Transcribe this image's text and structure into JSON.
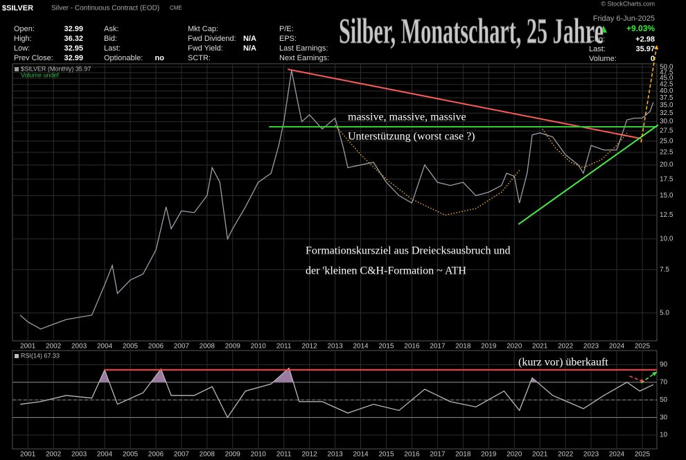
{
  "header": {
    "symbol": "$SILVER",
    "description": "Silver - Continuous Contract (EOD)",
    "exchange": "CME",
    "credit": "© StockCharts.com",
    "title": "Silber, Monatschart, 25 Jahre",
    "date": "Friday  6-Jun-2025",
    "change_pct": "+9.03%",
    "columns": [
      [
        {
          "label": "Open:",
          "value": "32.99"
        },
        {
          "label": "High:",
          "value": "36.32"
        },
        {
          "label": "Low:",
          "value": "32.95"
        },
        {
          "label": "Prev Close:",
          "value": "32.99"
        }
      ],
      [
        {
          "label": "Ask:"
        },
        {
          "label": "Bid:"
        },
        {
          "label": "Last:"
        },
        {
          "label": "Optionable:",
          "value": "no"
        }
      ],
      [
        {
          "label": "Mkt Cap:"
        },
        {
          "label": "Fwd Dividend:",
          "value": "N/A"
        },
        {
          "label": "Fwd Yield:",
          "value": "N/A"
        },
        {
          "label": "SCTR:"
        }
      ],
      [
        {
          "label": "P/E:"
        },
        {
          "label": "EPS:"
        },
        {
          "label": "Last Earnings:"
        },
        {
          "label": "Next Earnings:"
        }
      ]
    ],
    "right": [
      {
        "label": "Chg:",
        "value": "+2.98"
      },
      {
        "label": "Last:",
        "value": "35.97"
      },
      {
        "label": "Volume:",
        "value": "0"
      }
    ]
  },
  "chart_data": [
    {
      "type": "line",
      "log_scale": true,
      "grid": true,
      "legend": [
        "$SILVER (Monthly) 35.97",
        "Volume undef"
      ],
      "color": "#9aa0a8",
      "x": [
        2000.7,
        2001.0,
        2001.5,
        2002.0,
        2002.5,
        2003.0,
        2003.5,
        2004.0,
        2004.3,
        2004.5,
        2005.0,
        2005.5,
        2006.0,
        2006.4,
        2006.6,
        2007.0,
        2007.5,
        2008.0,
        2008.2,
        2008.5,
        2008.8,
        2009.0,
        2009.5,
        2010.0,
        2010.5,
        2010.8,
        2011.0,
        2011.3,
        2011.5,
        2011.7,
        2012.0,
        2012.5,
        2013.0,
        2013.3,
        2013.5,
        2014.0,
        2014.5,
        2015.0,
        2015.5,
        2016.0,
        2016.5,
        2017.0,
        2017.5,
        2018.0,
        2018.5,
        2019.0,
        2019.5,
        2019.7,
        2020.0,
        2020.2,
        2020.5,
        2020.7,
        2021.0,
        2021.5,
        2022.0,
        2022.5,
        2022.7,
        2023.0,
        2023.5,
        2023.8,
        2024.0,
        2024.4,
        2024.7,
        2025.0,
        2025.3,
        2025.43
      ],
      "values": [
        4.9,
        4.6,
        4.3,
        4.5,
        4.7,
        4.8,
        4.9,
        6.5,
        7.8,
        6.0,
        6.8,
        7.2,
        9.0,
        13.5,
        11.0,
        13.0,
        12.8,
        15.0,
        19.5,
        17.0,
        10.0,
        11.0,
        13.5,
        17.0,
        18.5,
        24,
        30,
        48.5,
        38,
        30,
        32,
        28,
        31,
        24,
        19.5,
        20,
        20.5,
        17,
        15,
        14,
        20,
        17,
        16.5,
        17,
        15,
        15.5,
        16.5,
        18.5,
        18,
        14,
        18.5,
        26.5,
        27,
        26,
        22,
        20,
        18.5,
        24,
        23,
        23,
        23,
        30.5,
        31,
        31,
        33,
        35.97
      ],
      "xlim": [
        2000.4,
        2025.57
      ],
      "xticks": [
        2001,
        2002,
        2003,
        2004,
        2005,
        2006,
        2007,
        2008,
        2009,
        2010,
        2011,
        2012,
        2013,
        2014,
        2015,
        2016,
        2017,
        2018,
        2019,
        2020,
        2021,
        2022,
        2023,
        2024,
        2025
      ],
      "ylim": [
        3.85,
        51.6
      ],
      "yticks": [
        {
          "value": 5,
          "label": "5.0"
        },
        7.5,
        {
          "value": 10,
          "label": "10.0"
        },
        12.5,
        {
          "value": 15,
          "label": "15.0"
        },
        17.5,
        {
          "value": 20,
          "label": "20.0"
        },
        22.5,
        {
          "value": 25,
          "label": "25.0"
        },
        27.5,
        {
          "value": 30,
          "label": "30.0"
        },
        32.5,
        {
          "value": 35,
          "label": "35.0"
        },
        37.5,
        {
          "value": 40,
          "label": "40.0"
        },
        42.5,
        {
          "value": 45,
          "label": "45.0"
        },
        47.5,
        {
          "value": 50,
          "label": "50.0"
        }
      ],
      "annotations": [
        "massive, massive, massive",
        "Unterstützung (worst case ?)",
        "Formationskursziel aus Dreiecksausbruch und",
        "der 'kleinen C&H-Formation ~ ATH"
      ],
      "lines": [
        {
          "color": "#ff5a5a",
          "style": "solid",
          "x": [
            2011.15,
            2024.95
          ],
          "values": [
            49.0,
            25.6
          ]
        },
        {
          "color": "#33cc33",
          "style": "solid",
          "x": [
            2010.42,
            2025.57
          ],
          "values": [
            28.6,
            28.6
          ]
        },
        {
          "color": "#44ee44",
          "style": "solid",
          "x": [
            2020.16,
            2025.62
          ],
          "values": [
            11.47,
            29.1
          ]
        },
        {
          "color": "#ffb020",
          "style": "dashed",
          "arrow": true,
          "x": [
            2024.95,
            2025.57
          ],
          "values": [
            24.7,
            61.5
          ]
        },
        {
          "color": "#e0a030",
          "style": "dotted",
          "x": [
            2013.0,
            2014.0,
            2015.0,
            2016.0,
            2017.3,
            2018.5,
            2019.5,
            2020.2
          ],
          "values": [
            29,
            22,
            17.5,
            14.5,
            12.5,
            13.3,
            15.5,
            19
          ]
        },
        {
          "color": "#e0a030",
          "style": "dotted",
          "x": [
            2021.1,
            2021.6,
            2022.2,
            2022.7,
            2023.4,
            2024.0,
            2024.4
          ],
          "values": [
            28,
            23.5,
            20.5,
            19.5,
            21,
            24,
            27
          ]
        }
      ]
    },
    {
      "type": "line",
      "color": "#bbbbbb",
      "legend": [
        "RSI(14) 67.33"
      ],
      "overbought_fill": "#9a7aa0",
      "x": [
        2000.7,
        2001.5,
        2002.5,
        2003.5,
        2004.0,
        2004.5,
        2005.5,
        2006.2,
        2006.6,
        2007.5,
        2008.2,
        2008.8,
        2009.5,
        2010.5,
        2011.2,
        2011.6,
        2012.5,
        2013.5,
        2014.5,
        2015.5,
        2016.5,
        2017.5,
        2018.5,
        2019.6,
        2020.2,
        2020.7,
        2021.5,
        2022.7,
        2023.5,
        2024.4,
        2024.9,
        2025.43
      ],
      "values": [
        45,
        48,
        55,
        52,
        84,
        45,
        58,
        85,
        55,
        55,
        65,
        30,
        60,
        68,
        86,
        48,
        48,
        35,
        45,
        38,
        62,
        48,
        42,
        60,
        38,
        75,
        55,
        40,
        55,
        70,
        60,
        67.33
      ],
      "xlim": [
        2000.4,
        2025.57
      ],
      "xticks": [
        2001,
        2002,
        2003,
        2004,
        2005,
        2006,
        2007,
        2008,
        2009,
        2010,
        2011,
        2012,
        2013,
        2014,
        2015,
        2016,
        2017,
        2018,
        2019,
        2020,
        2021,
        2022,
        2023,
        2024,
        2025
      ],
      "ylim": [
        -5.7,
        106
      ],
      "yticks": [
        10,
        30,
        50,
        70,
        90
      ],
      "hlines": [
        {
          "value": 70
        },
        {
          "value": 50,
          "dash": true
        },
        {
          "value": 30
        }
      ],
      "annotations": [
        "(kurz  vor) überkauft"
      ],
      "lines": [
        {
          "color": "#ff4040",
          "style": "solid",
          "x": [
            2003.98,
            2025.57
          ],
          "values": [
            84.1,
            84.1
          ]
        },
        {
          "color": "#ff4040",
          "style": "dashed",
          "arrow": true,
          "x": [
            2024.5,
            2025.1
          ],
          "values": [
            77,
            70
          ]
        },
        {
          "color": "#44ee44",
          "style": "dashed",
          "arrow": true,
          "x": [
            2024.95,
            2025.57
          ],
          "values": [
            69.2,
            81.8
          ]
        }
      ]
    }
  ]
}
